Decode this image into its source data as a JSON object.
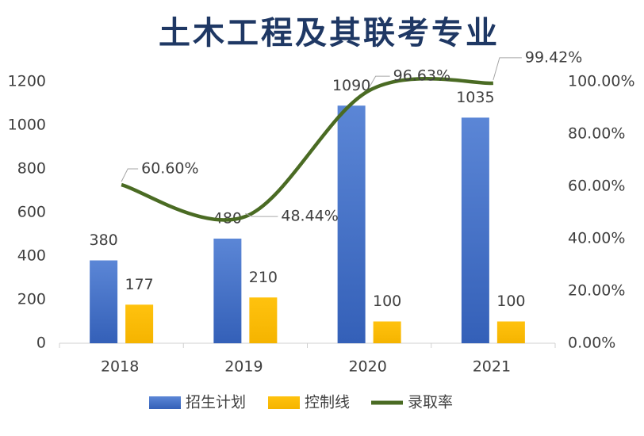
{
  "chart_data": {
    "type": "bar-line",
    "title": "土木工程及其联考专业",
    "categories": [
      "2018",
      "2019",
      "2020",
      "2021"
    ],
    "series": [
      {
        "name": "招生计划",
        "type": "bar",
        "color": "#4472c4",
        "values": [
          380,
          480,
          1090,
          1035
        ]
      },
      {
        "name": "控制线",
        "type": "bar",
        "color": "#ffc000",
        "values": [
          177,
          210,
          100,
          100
        ]
      },
      {
        "name": "录取率",
        "type": "line",
        "axis": "y2",
        "color": "#4a6b23",
        "values": [
          60.6,
          48.44,
          96.63,
          99.42
        ],
        "value_labels": [
          "60.60%",
          "48.44%",
          "96.63%",
          "99.42%"
        ]
      }
    ],
    "ylim": [
      0,
      1200
    ],
    "yticks": [
      0,
      200,
      400,
      600,
      800,
      1000,
      1200
    ],
    "y2lim": [
      0,
      100
    ],
    "y2ticks": [
      {
        "value": 0,
        "label": "0.00%"
      },
      {
        "value": 20,
        "label": "20.00%"
      },
      {
        "value": 40,
        "label": "40.00%"
      },
      {
        "value": 60,
        "label": "60.00%"
      },
      {
        "value": 80,
        "label": "80.00%"
      },
      {
        "value": 100,
        "label": "100.00%"
      }
    ],
    "legend": "bottom"
  }
}
